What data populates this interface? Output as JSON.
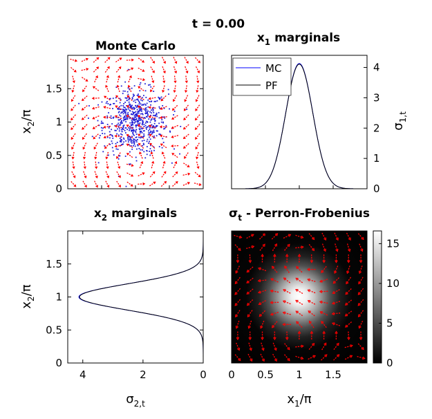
{
  "figure": {
    "title": "t = 0.00",
    "colors": {
      "samples": "#1f1fd6",
      "arrows": "#ff0000",
      "mc": "#0000ff",
      "pf": "#000000"
    }
  },
  "chart_data": [
    {
      "id": "monte-carlo",
      "type": "scatter",
      "title": "Monte Carlo",
      "xlabel": "",
      "ylabel_main": "x",
      "ylabel_sub": "2",
      "ylabel_tail": "/π",
      "xlim": [
        0,
        2
      ],
      "ylim": [
        0,
        2
      ],
      "yticks": [
        "0",
        "0.5",
        "1",
        "1.5"
      ],
      "ytick_values": [
        0,
        0.5,
        1,
        1.5
      ],
      "sample_distribution": {
        "mean": [
          1,
          1
        ],
        "std": [
          0.24,
          0.24
        ],
        "count": 650
      },
      "field_grid": {
        "nx": 12,
        "ny": 14
      }
    },
    {
      "id": "x1-marginals",
      "type": "line",
      "title_main": "x",
      "title_sub": "1",
      "title_tail": " marginals",
      "ylabel_main": "σ",
      "ylabel_sub": "1,t",
      "xlim": [
        0,
        2
      ],
      "ylim": [
        0,
        4.4
      ],
      "yticks": [
        "0",
        "1",
        "2",
        "3",
        "4"
      ],
      "ytick_values": [
        0,
        1,
        2,
        3,
        4
      ],
      "legend": {
        "placement": "top-left",
        "entries": [
          "MC",
          "PF"
        ]
      },
      "series": [
        {
          "name": "MC",
          "mean": 1.0,
          "std": 0.2,
          "peak": 4.13
        },
        {
          "name": "PF",
          "mean": 1.0,
          "std": 0.2,
          "peak": 4.13
        }
      ]
    },
    {
      "id": "x2-marginals",
      "type": "line",
      "title_main": "x",
      "title_sub": "2",
      "title_tail": " marginals",
      "xlabel_main": "σ",
      "xlabel_sub": "2,t",
      "ylabel_main": "x",
      "ylabel_sub": "2",
      "ylabel_tail": "/π",
      "xlim": [
        4.5,
        0
      ],
      "ylim": [
        0,
        2
      ],
      "xticks": [
        "4",
        "2",
        "0"
      ],
      "xtick_values": [
        4,
        2,
        0
      ],
      "yticks": [
        "0",
        "0.5",
        "1",
        "1.5"
      ],
      "ytick_values": [
        0,
        0.5,
        1,
        1.5
      ],
      "series": [
        {
          "name": "MC",
          "mean": 1.0,
          "std": 0.2,
          "peak": 4.13
        },
        {
          "name": "PF",
          "mean": 1.0,
          "std": 0.2,
          "peak": 4.13
        }
      ]
    },
    {
      "id": "perron-frobenius",
      "type": "heatmap",
      "title_main": "σ",
      "title_sub": "t",
      "title_tail": " - Perron-Frobenius",
      "xlabel_main": "x",
      "xlabel_sub": "1",
      "xlabel_tail": "/π",
      "xlim": [
        0,
        2
      ],
      "ylim": [
        0,
        2
      ],
      "xticks": [
        "0",
        "0.5",
        "1",
        "1.5"
      ],
      "xtick_values": [
        0,
        0.5,
        1,
        1.5
      ],
      "density": {
        "mean": [
          1,
          1
        ],
        "std": [
          0.2,
          0.2
        ],
        "peak": 16.6
      },
      "colorbar": {
        "range": [
          0,
          16.6
        ],
        "ticks": [
          "0",
          "5",
          "10",
          "15"
        ],
        "tick_values": [
          0,
          5,
          10,
          15
        ]
      },
      "field_grid": {
        "nx": 11,
        "ny": 12
      }
    }
  ]
}
